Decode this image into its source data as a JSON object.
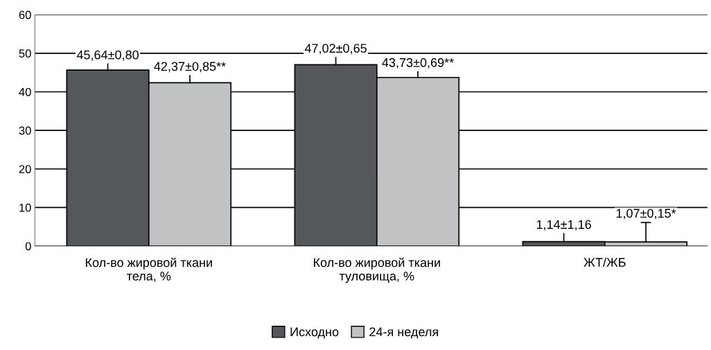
{
  "chart_data": {
    "type": "bar",
    "categories": [
      "Кол-во жировой ткани\nтела, %",
      "Кол-во жировой ткани\nтуловища, %",
      "ЖТ/ЖБ"
    ],
    "series": [
      {
        "name": "Исходно",
        "color": "#55585b",
        "values": [
          45.64,
          47.02,
          1.14
        ],
        "errors": [
          [
            45.64,
            47.2
          ],
          [
            47.02,
            48.9
          ],
          [
            1.14,
            3.2
          ]
        ],
        "value_labels": [
          "45,64±0,80",
          "47,02±0,65",
          "1,14±1,16"
        ]
      },
      {
        "name": "24-я неделя",
        "color": "#c0c2c4",
        "values": [
          42.37,
          43.73,
          1.07
        ],
        "errors": [
          [
            42.37,
            44.2
          ],
          [
            43.73,
            45.2
          ],
          [
            1.07,
            6.1
          ]
        ],
        "value_labels": [
          "42,37±0,85**",
          "43,73±0,69**",
          "1,07±0,15*"
        ]
      }
    ],
    "ylim": [
      0,
      60
    ],
    "yticks": [
      0,
      10,
      20,
      30,
      40,
      50,
      60
    ],
    "grid": "y",
    "legend": "bottom"
  }
}
